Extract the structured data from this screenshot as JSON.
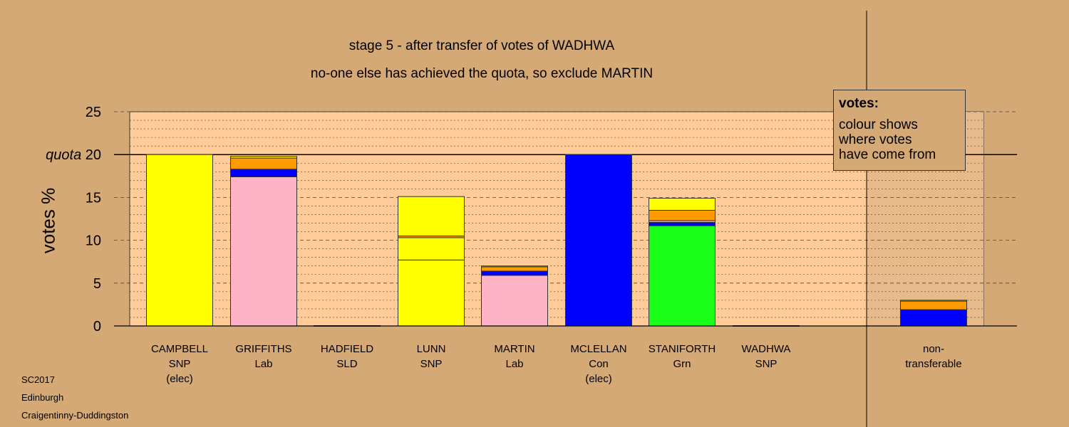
{
  "title": "stage 5 - after transfer of votes of WADHWA",
  "subtitle": "no-one else has achieved the quota, so exclude MARTIN",
  "legend": {
    "heading": "votes:",
    "lines": [
      "colour shows",
      "where votes",
      "have come from"
    ]
  },
  "footer": [
    "SC2017",
    "Edinburgh",
    "Craigentinny-Duddingston"
  ],
  "colors": {
    "background": "#d4a976",
    "plot_background": "#ffcc99",
    "SNP": "#ffff00",
    "Lab": "#ffb3c6",
    "Con": "#0000ff",
    "Grn": "#1aff1a",
    "SLD": "#ff9900"
  },
  "chart_data": {
    "type": "bar",
    "stacked": true,
    "ylabel": "votes %",
    "ylim": [
      0,
      25
    ],
    "yticks": [
      0,
      5,
      10,
      15,
      20,
      25
    ],
    "quota": 20,
    "quota_label": "quota",
    "grid": true,
    "legend_position": "top-right",
    "categories": [
      {
        "name": "CAMPBELL",
        "party": "SNP",
        "status": "(elec)"
      },
      {
        "name": "GRIFFITHS",
        "party": "Lab",
        "status": ""
      },
      {
        "name": "HADFIELD",
        "party": "SLD",
        "status": ""
      },
      {
        "name": "LUNN",
        "party": "SNP",
        "status": ""
      },
      {
        "name": "MARTIN",
        "party": "Lab",
        "status": ""
      },
      {
        "name": "MCLELLAN",
        "party": "Con",
        "status": "(elec)"
      },
      {
        "name": "STANIFORTH",
        "party": "Grn",
        "status": ""
      },
      {
        "name": "WADHWA",
        "party": "SNP",
        "status": ""
      }
    ],
    "nontransferable": {
      "label_lines": [
        "non-",
        "transferable"
      ]
    },
    "stacks": [
      [
        {
          "from": "SNP",
          "value": 20
        }
      ],
      [
        {
          "from": "Lab",
          "value": 17.4
        },
        {
          "from": "Con",
          "value": 0.9
        },
        {
          "from": "SLD",
          "value": 1.3
        },
        {
          "from": "SNP",
          "value": 0.2
        }
      ],
      [],
      [
        {
          "from": "SNP",
          "value": 7.7
        },
        {
          "from": "SNP",
          "value": 2.6
        },
        {
          "from": "SLD",
          "value": 0.2
        },
        {
          "from": "SNP",
          "value": 4.6
        }
      ],
      [
        {
          "from": "Lab",
          "value": 5.9
        },
        {
          "from": "Con",
          "value": 0.5
        },
        {
          "from": "SLD",
          "value": 0.5
        },
        {
          "from": "SNP",
          "value": 0.1
        }
      ],
      [
        {
          "from": "Con",
          "value": 20
        }
      ],
      [
        {
          "from": "Grn",
          "value": 11.7
        },
        {
          "from": "Con",
          "value": 0.4
        },
        {
          "from": "Lab",
          "value": 0.2
        },
        {
          "from": "SLD",
          "value": 1.2
        },
        {
          "from": "SNP",
          "value": 1.4
        }
      ],
      [],
      [
        {
          "from": "Con",
          "value": 1.9
        },
        {
          "from": "SLD",
          "value": 1.0
        },
        {
          "from": "SNP",
          "value": 0.1
        }
      ]
    ]
  }
}
